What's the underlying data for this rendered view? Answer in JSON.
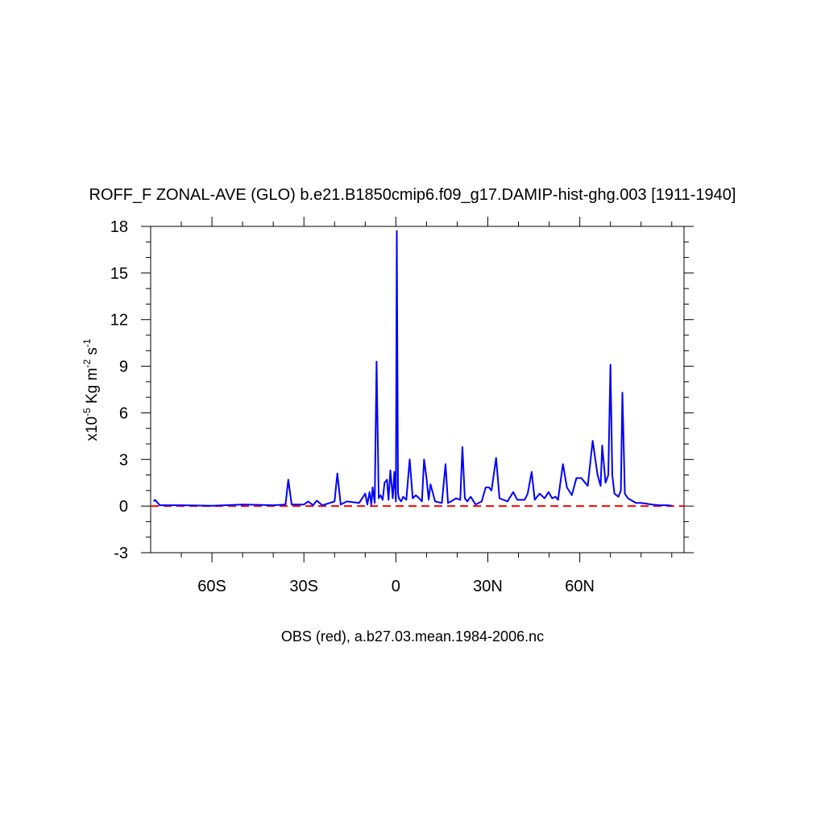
{
  "chart_data": {
    "type": "line",
    "title": "ROFF_F ZONAL-AVE (GLO) b.e21.B1850cmip6.f09_g17.DAMIP-hist-ghg.003 [1911-1940]",
    "ylabel_parts": [
      "x10",
      "-5",
      " Kg m",
      "-2",
      " s",
      "-1"
    ],
    "subtitle": "OBS (red), a.b27.03.mean.1984-2006.nc",
    "xlim": [
      -80,
      94
    ],
    "xticks": [
      {
        "value": -60,
        "label": "60S"
      },
      {
        "value": -30,
        "label": "30S"
      },
      0,
      {
        "value": 30,
        "label": "30N"
      },
      {
        "value": 60,
        "label": "60N"
      }
    ],
    "xminorticks": [
      -70,
      -50,
      -40,
      -20,
      -10,
      10,
      20,
      40,
      50,
      70,
      80,
      90
    ],
    "ylim": [
      -3,
      18
    ],
    "yticks": [
      -3,
      0,
      3,
      6,
      9,
      12,
      15,
      18
    ],
    "yminorticks": [
      -2,
      -1,
      1,
      2,
      4,
      5,
      7,
      8,
      10,
      11,
      13,
      14,
      16,
      17
    ],
    "series": [
      {
        "color": "#0000ff",
        "dashed": false,
        "x": [
          -79,
          -78.6,
          -77,
          -70,
          -60,
          -50,
          -45,
          -40,
          -36,
          -35.1,
          -34,
          -30,
          -28.6,
          -27,
          -25.8,
          -24,
          -20,
          -19.1,
          -18,
          -16,
          -12,
          -10,
          -9.3,
          -8.6,
          -8,
          -7.6,
          -6.9,
          -6.3,
          -5.6,
          -5,
          -4.3,
          -3.7,
          -2.9,
          -2.4,
          -1.8,
          -1,
          -0.5,
          0,
          0.3,
          0.7,
          1,
          1.7,
          2.4,
          3.4,
          4.5,
          5.5,
          6.5,
          7.6,
          8.5,
          9.2,
          10,
          10.7,
          11.3,
          12.8,
          15,
          16.2,
          17,
          18,
          19.6,
          21,
          21.7,
          22.5,
          23.3,
          24.4,
          26,
          28,
          29.3,
          30.4,
          31.2,
          32.7,
          33.8,
          36.4,
          38.3,
          39.6,
          42,
          43,
          44.3,
          45.3,
          46.9,
          48.5,
          49.8,
          51,
          52.1,
          52.9,
          54.5,
          55.8,
          57.4,
          58.9,
          60.5,
          62.6,
          64.2,
          65.8,
          66.8,
          67.3,
          68.4,
          69.3,
          70,
          70.6,
          71.3,
          72.6,
          73.4,
          73.9,
          74.7,
          75.7,
          78.3,
          80,
          83.6,
          86,
          88.8,
          90
        ],
        "values": [
          0.3,
          0.4,
          0.05,
          0.05,
          0.02,
          0.1,
          0.08,
          0.05,
          0.1,
          1.7,
          0.1,
          0.1,
          0.3,
          0.05,
          0.35,
          0.05,
          0.3,
          2.1,
          0.1,
          0.3,
          0.2,
          0.8,
          0.1,
          0.9,
          0.1,
          1.2,
          0.2,
          9.3,
          0.5,
          0.7,
          0.4,
          1.5,
          1.7,
          0.4,
          2.3,
          0.5,
          2.2,
          0.3,
          17.7,
          0.8,
          0.5,
          0.3,
          0.6,
          0.4,
          3.0,
          0.5,
          0.7,
          0.5,
          0.3,
          3.0,
          1.8,
          0.4,
          1.4,
          0.3,
          0.2,
          2.7,
          0.2,
          0.3,
          0.5,
          0.4,
          3.8,
          0.5,
          0.3,
          0.6,
          0.1,
          0.3,
          1.2,
          1.2,
          1.0,
          3.1,
          0.5,
          0.3,
          0.9,
          0.4,
          0.4,
          0.8,
          2.2,
          0.4,
          0.8,
          0.5,
          0.9,
          0.5,
          0.6,
          0.4,
          2.7,
          1.2,
          0.7,
          1.8,
          1.8,
          1.3,
          4.2,
          2.0,
          1.3,
          3.9,
          1.5,
          2.0,
          9.1,
          2.0,
          0.8,
          0.6,
          1.0,
          7.3,
          0.8,
          0.5,
          0.2,
          0.2,
          0.1,
          0.05,
          0.05,
          0.02
        ]
      },
      {
        "color": "#ff0000",
        "dashed": true,
        "x": [
          -80,
          94
        ],
        "values": [
          0,
          0
        ]
      }
    ]
  }
}
